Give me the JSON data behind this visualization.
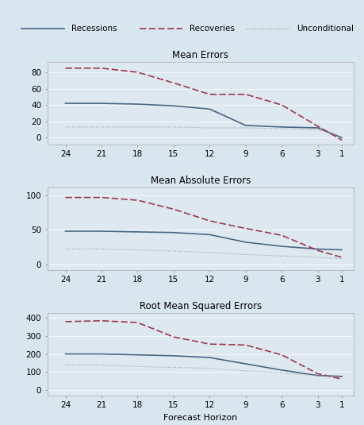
{
  "x": [
    24,
    21,
    18,
    15,
    12,
    9,
    6,
    3,
    1
  ],
  "panel1": {
    "title": "Mean Errors",
    "recessions": [
      42,
      42,
      41,
      39,
      35,
      15,
      13,
      12,
      0
    ],
    "recoveries": [
      85,
      85,
      80,
      67,
      53,
      53,
      40,
      14,
      -3
    ],
    "unconditional": [
      13,
      13,
      13,
      13,
      12,
      12,
      11,
      10,
      1
    ],
    "yticks": [
      0,
      20,
      40,
      60,
      80
    ],
    "ylim": [
      -8,
      93
    ]
  },
  "panel2": {
    "title": "Mean Absolute Errors",
    "recessions": [
      48,
      48,
      47,
      46,
      43,
      32,
      26,
      22,
      21
    ],
    "recoveries": [
      97,
      97,
      93,
      80,
      63,
      52,
      42,
      20,
      10
    ],
    "unconditional": [
      22,
      22,
      21,
      19,
      17,
      14,
      12,
      10,
      8
    ],
    "yticks": [
      0,
      50,
      100
    ],
    "ylim": [
      -8,
      112
    ]
  },
  "panel3": {
    "title": "Root Mean Squared Errors",
    "recessions": [
      200,
      200,
      195,
      190,
      180,
      145,
      110,
      80,
      75
    ],
    "recoveries": [
      380,
      385,
      375,
      295,
      255,
      250,
      195,
      90,
      60
    ],
    "unconditional": [
      140,
      138,
      130,
      125,
      120,
      105,
      95,
      80,
      70
    ],
    "yticks": [
      0,
      100,
      200,
      300,
      400
    ],
    "ylim": [
      -30,
      430
    ]
  },
  "xlabel": "Forecast Horizon",
  "recession_color": "#4a6785",
  "recovery_color": "#9e3a4e",
  "unconditional_color": "#a0a0a0",
  "bg_color": "#d8e6ef",
  "plot_bg_color": "#dde8f0",
  "legend_bg": "#f0f0f0",
  "legend_labels": [
    "Recessions",
    "Recoveries",
    "Unconditional"
  ],
  "title_fontsize": 8.5,
  "label_fontsize": 8,
  "tick_fontsize": 7.5
}
